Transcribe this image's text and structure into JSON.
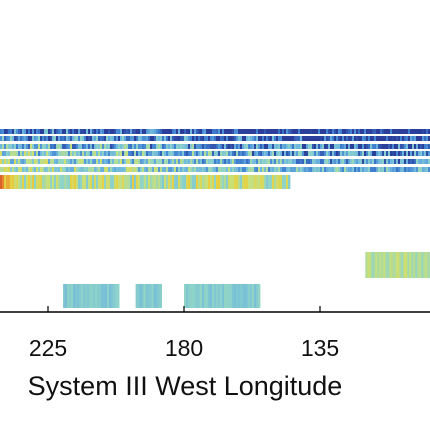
{
  "chart_data": {
    "type": "heatmap",
    "title": "",
    "xlabel": "System III West Longitude",
    "ylabel": "",
    "x_reversed": true,
    "xlim_visible": [
      280,
      70
    ],
    "x_ticks": [
      225,
      180,
      135
    ],
    "grid": false,
    "legend": "none",
    "colormap": [
      "#2b3f9a",
      "#3f7fd0",
      "#6fb8de",
      "#8fd4c8",
      "#c8e07a",
      "#e8d040",
      "#e88a30",
      "#d0402a"
    ],
    "bands": [
      {
        "lon_start": 280,
        "lon_end": 70,
        "level": 0.15,
        "variability": 0.25
      },
      {
        "lon_start": 280,
        "lon_end": 70,
        "level": 0.25,
        "variability": 0.25
      },
      {
        "lon_start": 280,
        "lon_end": 70,
        "level": 0.35,
        "variability": 0.25
      },
      {
        "lon_start": 280,
        "lon_end": 70,
        "level": 0.4,
        "variability": 0.25
      },
      {
        "lon_start": 280,
        "lon_end": 70,
        "level": 0.45,
        "variability": 0.22
      },
      {
        "lon_start": 280,
        "lon_end": 70,
        "level": 0.5,
        "variability": 0.2
      },
      {
        "lon_start": 267,
        "lon_end": 145,
        "level": 0.55,
        "variability": 0.18
      },
      {
        "lon_start": 120,
        "lon_end": 70,
        "level": 0.52,
        "variability": 0.08
      },
      {
        "lon_start": 220,
        "lon_end": 202,
        "level": 0.38,
        "variability": 0.06
      },
      {
        "lon_start": 196,
        "lon_end": 188,
        "level": 0.38,
        "variability": 0.06
      },
      {
        "lon_start": 180,
        "lon_end": 155,
        "level": 0.38,
        "variability": 0.06
      }
    ]
  }
}
